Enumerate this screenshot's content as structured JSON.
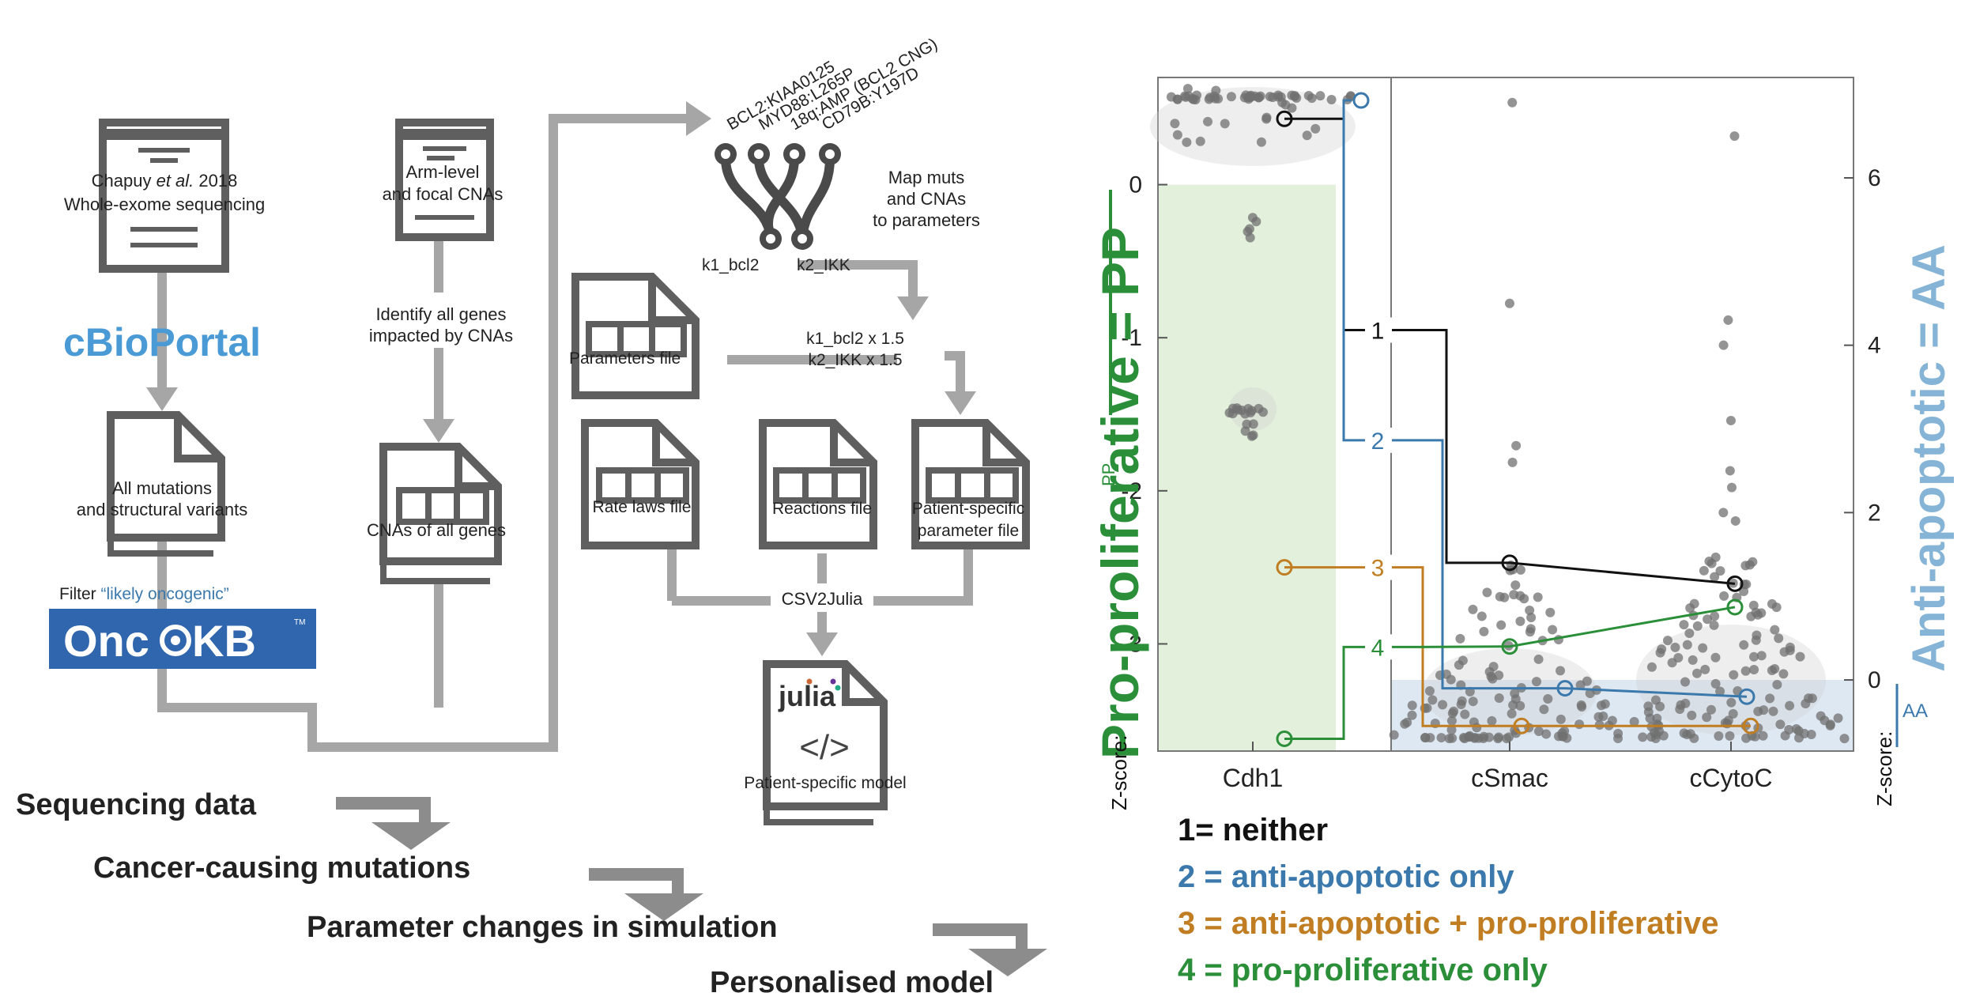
{
  "workflow": {
    "chapuy_title": "Chapuy",
    "chapuy_etal": "et al.",
    "chapuy_year": "2018",
    "chapuy_subtitle": "Whole-exome sequencing",
    "cbioportal": "cBioPortal",
    "all_mutations_1": "All mutations",
    "all_mutations_2": "and structural variants",
    "filter_prefix": "Filter",
    "filter_quote": "“likely oncogenic”",
    "oncokb_1": "Onc",
    "oncokb_2": "KB",
    "oncokb_tm": "TM",
    "cna_doc_1": "Arm-level",
    "cna_doc_2": "and focal CNAs",
    "identify_1": "Identify all genes",
    "identify_2": "impacted by CNAs",
    "cnas_all_genes": "CNAs of all genes",
    "mut_labels": [
      "BCL2:KIAA0125",
      "MYD88:L265P",
      "18q:AMP (BCL2 CNG)",
      "CD79B:Y197D"
    ],
    "map_1": "Map muts",
    "map_2": "and CNAs",
    "map_3": "to parameters",
    "k1": "k1_bcl2",
    "k2": "k2_IKK",
    "parameters_file": "Parameters file",
    "mult_1": "k1_bcl2 x 1.5",
    "mult_2": "k2_IKK  x 1.5",
    "rate_laws_file": "Rate laws file",
    "reactions_file": "Reactions file",
    "patient_param_1": "Patient-specific",
    "patient_param_2": "parameter file",
    "csv2julia": "CSV2Julia",
    "julia": "julia",
    "code_glyph": "</>",
    "patient_model": "Patient-specific model"
  },
  "steps": [
    "Sequencing data",
    "Cancer-causing mutations",
    "Parameter changes in simulation",
    "Personalised model"
  ],
  "legend": [
    {
      "text": "1= neither",
      "color": "#111111"
    },
    {
      "text": "2 = anti-apoptotic only",
      "color": "#3b79ad"
    },
    {
      "text": "3 = anti-apoptotic + pro-proliferative",
      "color": "#c07d22"
    },
    {
      "text": "4 = pro-proliferative only",
      "color": "#2b8f3a"
    }
  ],
  "chart_data": {
    "type": "scatter",
    "categories": [
      "Cdh1",
      "cSmac",
      "cCytoC"
    ],
    "left_axis": {
      "label": "Z-score:",
      "ticks": [
        0,
        -1,
        -2,
        -3
      ],
      "range": [
        -3.7,
        0.7
      ]
    },
    "right_axis": {
      "label": "Z-score:",
      "ticks": [
        0,
        2,
        4,
        6
      ],
      "range": [
        -0.85,
        7.2
      ]
    },
    "pro_proliferative_label": "Pro-proliferative = PP",
    "pp_tag": "PP",
    "anti_apoptotic_label": "Anti-apoptotic = AA",
    "aa_tag": "AA",
    "line_labels": [
      "1",
      "2",
      "3",
      "4"
    ],
    "highlighted_lines": [
      {
        "name": "1",
        "color": "#111111",
        "cdh1": 0.43,
        "csmac": 1.4,
        "ccytoc": 1.15
      },
      {
        "name": "2",
        "color": "#3b79ad",
        "cdh1": 0.55,
        "csmac": -0.1,
        "ccytoc": -0.2
      },
      {
        "name": "3",
        "color": "#c07d22",
        "cdh1": -2.5,
        "csmac": -0.55,
        "ccytoc": -0.55
      },
      {
        "name": "4",
        "color": "#2b8f3a",
        "cdh1": -3.62,
        "csmac": 0.4,
        "ccytoc": 0.87
      }
    ],
    "colors": {
      "pp_region": "#e2f0dc",
      "aa_region": "#dde8f3",
      "points": "#707070"
    }
  }
}
